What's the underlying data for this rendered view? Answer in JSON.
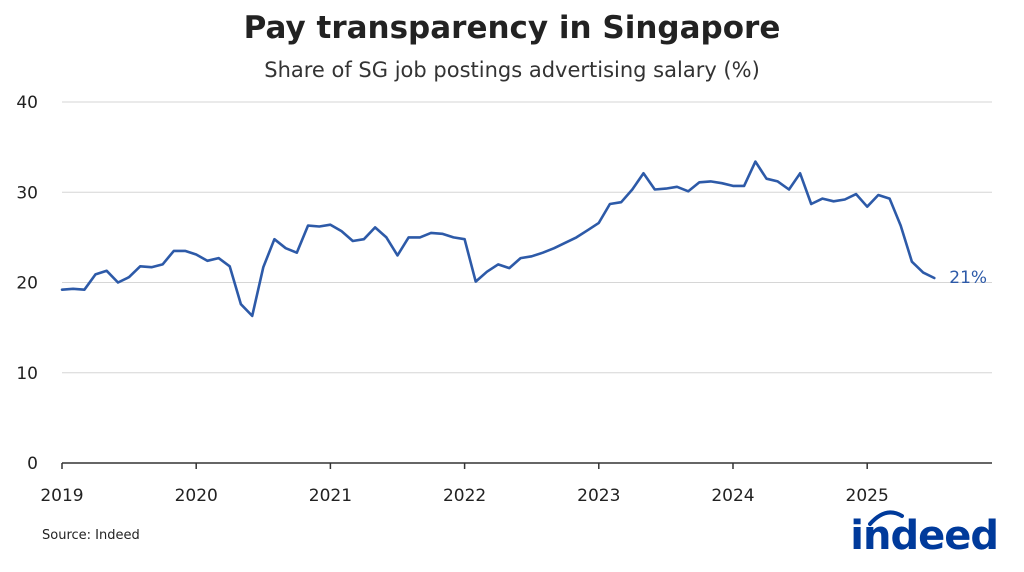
{
  "chart_data": {
    "type": "line",
    "title": "Pay transparency in Singapore",
    "subtitle": "Share of SG job postings advertising salary (%)",
    "xlabel": "",
    "ylabel": "",
    "ylim": [
      0,
      40
    ],
    "yticks": [
      "0",
      "10",
      "20",
      "30",
      "40"
    ],
    "ytick_values": [
      0,
      10,
      20,
      30,
      40
    ],
    "xticks": [
      "2019",
      "2020",
      "2021",
      "2022",
      "2023",
      "2024",
      "2025"
    ],
    "xtick_values": [
      2019,
      2020,
      2021,
      2022,
      2023,
      2024,
      2025
    ],
    "xlim": [
      2019.0,
      2025.93
    ],
    "grid": true,
    "end_label": "21%",
    "series": [
      {
        "name": "Share of SG job postings advertising salary",
        "color": "#2d5aa8",
        "x": [
          2019.0,
          2019.083,
          2019.167,
          2019.25,
          2019.333,
          2019.417,
          2019.5,
          2019.583,
          2019.667,
          2019.75,
          2019.833,
          2019.917,
          2020.0,
          2020.083,
          2020.167,
          2020.25,
          2020.333,
          2020.417,
          2020.5,
          2020.583,
          2020.667,
          2020.75,
          2020.833,
          2020.917,
          2021.0,
          2021.083,
          2021.167,
          2021.25,
          2021.333,
          2021.417,
          2021.5,
          2021.583,
          2021.667,
          2021.75,
          2021.833,
          2021.917,
          2022.0,
          2022.083,
          2022.167,
          2022.25,
          2022.333,
          2022.417,
          2022.5,
          2022.583,
          2022.667,
          2022.75,
          2022.833,
          2022.917,
          2023.0,
          2023.083,
          2023.167,
          2023.25,
          2023.333,
          2023.417,
          2023.5,
          2023.583,
          2023.667,
          2023.75,
          2023.833,
          2023.917,
          2024.0,
          2024.083,
          2024.167,
          2024.25,
          2024.333,
          2024.417,
          2024.5,
          2024.583,
          2024.667,
          2024.75,
          2024.833,
          2024.917,
          2025.0,
          2025.083,
          2025.167,
          2025.25,
          2025.333,
          2025.417,
          2025.5
        ],
        "values": [
          19.2,
          19.3,
          19.2,
          20.9,
          21.3,
          20.0,
          20.6,
          21.8,
          21.7,
          22.0,
          23.5,
          23.5,
          23.1,
          22.4,
          22.7,
          21.8,
          17.6,
          16.3,
          21.7,
          24.8,
          23.8,
          23.3,
          26.3,
          26.2,
          26.4,
          25.7,
          24.6,
          24.8,
          26.1,
          25.0,
          23.0,
          25.0,
          25.0,
          25.5,
          25.4,
          25.0,
          24.8,
          20.1,
          21.2,
          22.0,
          21.6,
          22.7,
          22.9,
          23.3,
          23.8,
          24.4,
          25.0,
          25.8,
          26.6,
          28.7,
          28.9,
          30.3,
          32.1,
          30.3,
          30.4,
          30.6,
          30.1,
          31.1,
          31.2,
          31.0,
          30.7,
          30.7,
          33.4,
          31.5,
          31.2,
          30.3,
          32.1,
          28.7,
          29.3,
          29.0,
          29.2,
          29.8,
          28.4,
          29.7,
          29.3,
          26.3,
          22.3,
          21.1,
          20.5
        ]
      }
    ]
  },
  "footer": {
    "source": "Source: Indeed",
    "logo": "indeed"
  }
}
